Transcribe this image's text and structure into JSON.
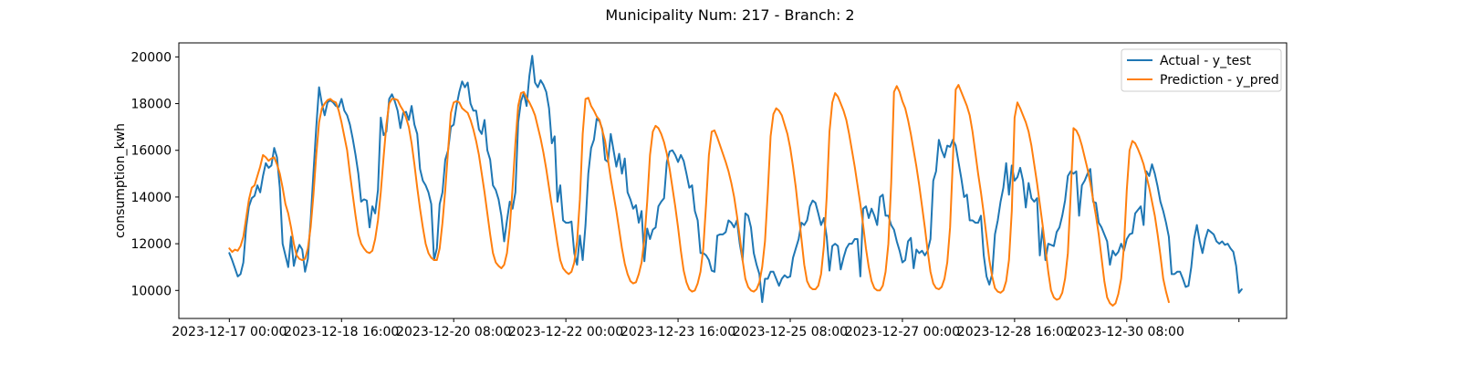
{
  "chart_data": {
    "type": "line",
    "title": "Municipality Num: 217 - Branch: 2",
    "xlabel": "",
    "ylabel": "consumption_kwh",
    "x_start": "2023-12-17 00:00",
    "x_step_hours": 1,
    "x_ticks": [
      {
        "hour": 0,
        "label": "2023-12-17 00:00"
      },
      {
        "hour": 40,
        "label": "2023-12-18 16:00"
      },
      {
        "hour": 80,
        "label": "2023-12-20 08:00"
      },
      {
        "hour": 120,
        "label": "2023-12-22 00:00"
      },
      {
        "hour": 160,
        "label": "2023-12-23 16:00"
      },
      {
        "hour": 200,
        "label": "2023-12-25 08:00"
      },
      {
        "hour": 240,
        "label": "2023-12-27 00:00"
      },
      {
        "hour": 280,
        "label": "2023-12-28 16:00"
      },
      {
        "hour": 320,
        "label": "2023-12-30 08:00"
      },
      {
        "hour": 360,
        "label": ""
      }
    ],
    "xlim_hours": [
      -18,
      377
    ],
    "ylim": [
      8800,
      20600
    ],
    "y_ticks": [
      10000,
      12000,
      14000,
      16000,
      18000,
      20000
    ],
    "grid": false,
    "legend_position": "top-right",
    "series": [
      {
        "name": "Actual - y_test",
        "color": "#1f77b4",
        "values": [
          11600,
          11300,
          10950,
          10600,
          10700,
          11200,
          12700,
          13600,
          13950,
          14050,
          14500,
          14200,
          14900,
          15450,
          15250,
          15350,
          16100,
          15700,
          14400,
          12000,
          11500,
          11000,
          12300,
          11050,
          11600,
          11950,
          11750,
          10800,
          11350,
          13000,
          15050,
          17000,
          18700,
          18000,
          17500,
          18050,
          18150,
          18050,
          17900,
          17850,
          18200,
          17700,
          17500,
          17100,
          16500,
          15800,
          15000,
          13800,
          13900,
          13850,
          12700,
          13600,
          13300,
          14300,
          17400,
          16650,
          16800,
          18200,
          18400,
          18100,
          17700,
          16950,
          17600,
          17650,
          17300,
          17900,
          17100,
          16700,
          15200,
          14700,
          14500,
          14200,
          13700,
          11300,
          11800,
          13700,
          14200,
          15600,
          16000,
          17000,
          17100,
          17900,
          18500,
          18950,
          18700,
          18900,
          18000,
          17700,
          17700,
          16900,
          16700,
          17300,
          16000,
          15600,
          14500,
          14300,
          13900,
          13200,
          12100,
          13000,
          13800,
          13500,
          14200,
          17200,
          18100,
          18450,
          17900,
          19200,
          20050,
          18900,
          18700,
          19000,
          18800,
          18500,
          17800,
          16300,
          16600,
          13800,
          14500,
          13000,
          12900,
          12900,
          12950,
          11600,
          11100,
          12350,
          11300,
          12800,
          15000,
          16100,
          16450,
          17350,
          17250,
          16900,
          15600,
          15500,
          16700,
          16000,
          15300,
          15850,
          15000,
          15650,
          14200,
          13900,
          13500,
          13650,
          12900,
          13400,
          11250,
          12650,
          12200,
          12600,
          12700,
          13600,
          13800,
          13950,
          15500,
          15950,
          16000,
          15800,
          15500,
          15800,
          15550,
          15000,
          14400,
          14500,
          13400,
          13000,
          11600,
          11600,
          11500,
          11300,
          10850,
          10800,
          12350,
          12400,
          12400,
          12500,
          13000,
          12900,
          12700,
          13000,
          12000,
          11300,
          13300,
          13200,
          12700,
          11600,
          11100,
          10700,
          9500,
          10500,
          10500,
          10800,
          10800,
          10500,
          10200,
          10500,
          10650,
          10550,
          10600,
          11400,
          11800,
          12200,
          12900,
          12800,
          13000,
          13600,
          13850,
          13750,
          13300,
          12800,
          13100,
          12300,
          10850,
          11900,
          12000,
          11900,
          10900,
          11400,
          11800,
          12000,
          12000,
          12200,
          12200,
          10600,
          13500,
          13600,
          13100,
          13500,
          13200,
          12800,
          14000,
          14100,
          13200,
          13200,
          12800,
          12600,
          12100,
          11700,
          11200,
          11300,
          12100,
          12250,
          10950,
          11750,
          11600,
          11700,
          11500,
          11700,
          12200,
          14700,
          15100,
          16450,
          16000,
          15700,
          16200,
          16150,
          16450,
          16200,
          15500,
          14800,
          14000,
          14100,
          13000,
          13000,
          12900,
          12900,
          13200,
          11500,
          10600,
          10250,
          10700,
          12400,
          13000,
          13800,
          14400,
          15450,
          14100,
          15350,
          14700,
          14850,
          15250,
          14700,
          13550,
          14600,
          13950,
          13800,
          13950,
          11500,
          12700,
          11300,
          12000,
          11950,
          11900,
          12500,
          12700,
          13200,
          13850,
          14900,
          15100,
          15000,
          15100,
          13200,
          14500,
          14700,
          15000,
          15200,
          13800,
          13750,
          12900,
          12700,
          12400,
          12100,
          11100,
          11700,
          11500,
          11650,
          12000,
          11700,
          12200,
          12400,
          12450,
          13300,
          13450,
          13600,
          12800,
          15100,
          14900,
          15400,
          15000,
          14450,
          13800,
          13400,
          12900,
          12300,
          10700,
          10700,
          10800,
          10800,
          10500,
          10150,
          10200,
          11000,
          12200,
          12800,
          12100,
          11600,
          12200,
          12600,
          12500,
          12400,
          12100,
          12000,
          12100,
          11950,
          12000,
          11800,
          11650,
          11050,
          9900,
          10050
        ]
      },
      {
        "name": "Prediction - y_pred",
        "color": "#ff7f0e",
        "values": [
          11800,
          11650,
          11750,
          11700,
          11900,
          12300,
          13100,
          13900,
          14400,
          14500,
          14900,
          15300,
          15800,
          15700,
          15550,
          15650,
          15700,
          15400,
          15000,
          14400,
          13700,
          13300,
          12700,
          12000,
          11500,
          11350,
          11300,
          11350,
          11800,
          12700,
          14100,
          15800,
          17200,
          17800,
          18000,
          18150,
          18200,
          18100,
          18050,
          17700,
          17200,
          16600,
          16000,
          15000,
          14100,
          13200,
          12400,
          12000,
          11800,
          11650,
          11600,
          11700,
          12200,
          13000,
          14200,
          15700,
          17100,
          18000,
          18200,
          18200,
          18150,
          17900,
          17700,
          17400,
          17000,
          16300,
          15400,
          14400,
          13500,
          12700,
          12000,
          11600,
          11400,
          11300,
          11300,
          11800,
          12900,
          14300,
          16000,
          17600,
          18050,
          18100,
          18050,
          17800,
          17700,
          17600,
          17300,
          16900,
          16400,
          15800,
          15000,
          14200,
          13300,
          12400,
          11600,
          11200,
          11050,
          10950,
          11100,
          11600,
          12700,
          14400,
          16300,
          17900,
          18450,
          18500,
          18250,
          18050,
          17800,
          17500,
          17000,
          16500,
          15900,
          15200,
          14400,
          13600,
          12800,
          12000,
          11300,
          10950,
          10800,
          10700,
          10800,
          11200,
          12100,
          13900,
          16700,
          18200,
          18250,
          17900,
          17700,
          17450,
          17300,
          16850,
          16400,
          15600,
          14800,
          14100,
          13400,
          12600,
          11800,
          11150,
          10700,
          10400,
          10300,
          10350,
          10700,
          11200,
          12200,
          13800,
          15800,
          16800,
          17050,
          16950,
          16700,
          16350,
          15850,
          15200,
          14400,
          13600,
          12700,
          11700,
          10850,
          10350,
          10050,
          9950,
          10000,
          10300,
          10800,
          11800,
          13700,
          15800,
          16800,
          16850,
          16550,
          16200,
          15850,
          15500,
          15100,
          14600,
          14000,
          13200,
          12300,
          11300,
          10500,
          10150,
          10000,
          9950,
          10050,
          10350,
          11000,
          12100,
          14200,
          16600,
          17550,
          17800,
          17700,
          17500,
          17100,
          16700,
          16100,
          15300,
          14400,
          13300,
          12200,
          11100,
          10400,
          10150,
          10050,
          10050,
          10200,
          10700,
          11900,
          14000,
          16800,
          18050,
          18450,
          18300,
          18000,
          17700,
          17300,
          16700,
          16000,
          15300,
          14500,
          13700,
          12800,
          11800,
          11000,
          10400,
          10100,
          10000,
          10000,
          10200,
          10800,
          12000,
          14600,
          18500,
          18750,
          18500,
          18100,
          17800,
          17300,
          16700,
          16000,
          15300,
          14500,
          13600,
          12700,
          11700,
          10800,
          10300,
          10100,
          10050,
          10150,
          10500,
          11200,
          12700,
          15600,
          18600,
          18800,
          18500,
          18200,
          17900,
          17500,
          16800,
          15900,
          15000,
          14200,
          13300,
          12300,
          11300,
          10600,
          10100,
          9950,
          9900,
          10000,
          10400,
          11300,
          13400,
          17400,
          18050,
          17800,
          17500,
          17200,
          16800,
          16200,
          15400,
          14600,
          13700,
          12800,
          11800,
          10800,
          10000,
          9700,
          9600,
          9650,
          9900,
          10500,
          11600,
          14100,
          16950,
          16850,
          16600,
          16200,
          15700,
          15200,
          14600,
          13900,
          13200,
          12400,
          11400,
          10400,
          9700,
          9450,
          9350,
          9450,
          9850,
          10500,
          11900,
          14300,
          16000,
          16400,
          16300,
          16050,
          15750,
          15400,
          14900,
          14400,
          13800,
          13200,
          12400,
          11500,
          10500,
          9950,
          9500
        ]
      }
    ]
  }
}
